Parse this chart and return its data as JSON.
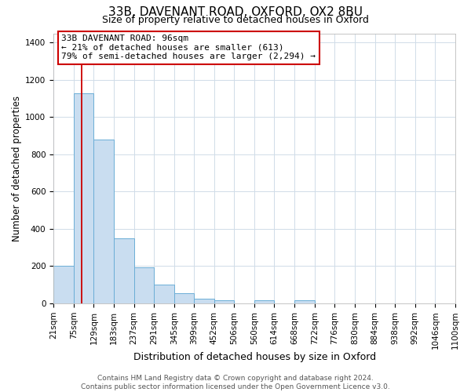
{
  "title": "33B, DAVENANT ROAD, OXFORD, OX2 8BU",
  "subtitle": "Size of property relative to detached houses in Oxford",
  "xlabel": "Distribution of detached houses by size in Oxford",
  "ylabel": "Number of detached properties",
  "bar_color": "#c9ddf0",
  "bar_edge_color": "#6baed6",
  "background_color": "#ffffff",
  "grid_color": "#d0dce8",
  "bin_labels": [
    "21sqm",
    "75sqm",
    "129sqm",
    "183sqm",
    "237sqm",
    "291sqm",
    "345sqm",
    "399sqm",
    "452sqm",
    "506sqm",
    "560sqm",
    "614sqm",
    "668sqm",
    "722sqm",
    "776sqm",
    "830sqm",
    "884sqm",
    "938sqm",
    "992sqm",
    "1046sqm",
    "1100sqm"
  ],
  "bar_heights": [
    200,
    1130,
    880,
    350,
    195,
    100,
    55,
    25,
    15,
    0,
    15,
    0,
    15,
    0,
    0,
    0,
    0,
    0,
    0,
    0
  ],
  "ylim": [
    0,
    1450
  ],
  "yticks": [
    0,
    200,
    400,
    600,
    800,
    1000,
    1200,
    1400
  ],
  "bin_edges_values": [
    21,
    75,
    129,
    183,
    237,
    291,
    345,
    399,
    452,
    506,
    560,
    614,
    668,
    722,
    776,
    830,
    884,
    938,
    992,
    1046,
    1100
  ],
  "red_line_x": 96,
  "annotation_text": "33B DAVENANT ROAD: 96sqm\n← 21% of detached houses are smaller (613)\n79% of semi-detached houses are larger (2,294) →",
  "annotation_box_facecolor": "#ffffff",
  "annotation_box_edgecolor": "#cc0000",
  "red_line_color": "#cc0000",
  "footer_text": "Contains HM Land Registry data © Crown copyright and database right 2024.\nContains public sector information licensed under the Open Government Licence v3.0.",
  "title_fontsize": 11,
  "subtitle_fontsize": 9,
  "xlabel_fontsize": 9,
  "ylabel_fontsize": 8.5,
  "tick_fontsize": 7.5,
  "annotation_fontsize": 8,
  "footer_fontsize": 6.5
}
